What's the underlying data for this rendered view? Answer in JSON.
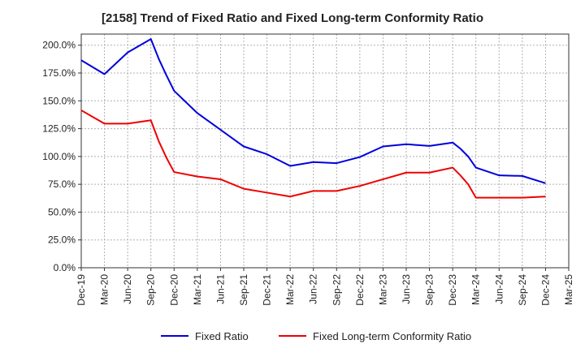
{
  "chart_data": {
    "type": "line",
    "title": "[2158]  Trend of Fixed Ratio and Fixed Long-term Conformity Ratio",
    "xlabel": "",
    "ylabel": "",
    "x_ticks": [
      "Dec-19",
      "Mar-20",
      "Jun-20",
      "Sep-20",
      "Dec-20",
      "Mar-21",
      "Jun-21",
      "Sep-21",
      "Dec-21",
      "Mar-22",
      "Jun-22",
      "Sep-22",
      "Dec-22",
      "Mar-23",
      "Jun-23",
      "Sep-23",
      "Dec-23",
      "Mar-24",
      "Jun-24",
      "Sep-24",
      "Dec-24",
      "Mar-25"
    ],
    "y_ticks": [
      "0.0%",
      "25.0%",
      "50.0%",
      "75.0%",
      "100.0%",
      "125.0%",
      "150.0%",
      "175.0%",
      "200.0%"
    ],
    "ylim": [
      0,
      210
    ],
    "grid": true,
    "legend_position": "bottom-center",
    "series": [
      {
        "name": "Fixed Ratio",
        "color": "#0000dd",
        "points": [
          [
            "Dec-19",
            186.5
          ],
          [
            "Mar-20",
            174
          ],
          [
            "Jun-20",
            193.5
          ],
          [
            "Sep-20",
            205.5
          ],
          [
            "Oct-20",
            188
          ],
          [
            "Nov-20",
            173
          ],
          [
            "Dec-20",
            159
          ],
          [
            "Mar-21",
            139
          ],
          [
            "Jun-21",
            124
          ],
          [
            "Sep-21",
            109
          ],
          [
            "Dec-21",
            102
          ],
          [
            "Mar-22",
            91.5
          ],
          [
            "Jun-22",
            95
          ],
          [
            "Sep-22",
            94
          ],
          [
            "Dec-22",
            99.5
          ],
          [
            "Mar-23",
            109
          ],
          [
            "Jun-23",
            111
          ],
          [
            "Sep-23",
            109.5
          ],
          [
            "Dec-23",
            112.5
          ],
          [
            "Jan-24",
            107
          ],
          [
            "Feb-24",
            100
          ],
          [
            "Mar-24",
            90
          ],
          [
            "Jun-24",
            83
          ],
          [
            "Sep-24",
            82.5
          ],
          [
            "Dec-24",
            76
          ]
        ]
      },
      {
        "name": "Fixed Long-term Conformity Ratio",
        "color": "#ee0000",
        "points": [
          [
            "Dec-19",
            141.5
          ],
          [
            "Mar-20",
            129.5
          ],
          [
            "Jun-20",
            129.5
          ],
          [
            "Sep-20",
            132.5
          ],
          [
            "Oct-20",
            114
          ],
          [
            "Nov-20",
            99
          ],
          [
            "Dec-20",
            86
          ],
          [
            "Mar-21",
            82
          ],
          [
            "Jun-21",
            79.5
          ],
          [
            "Sep-21",
            71
          ],
          [
            "Dec-21",
            67.5
          ],
          [
            "Mar-22",
            64
          ],
          [
            "Jun-22",
            69
          ],
          [
            "Sep-22",
            69
          ],
          [
            "Dec-22",
            73.5
          ],
          [
            "Mar-23",
            79.5
          ],
          [
            "Jun-23",
            85.5
          ],
          [
            "Sep-23",
            85.5
          ],
          [
            "Dec-23",
            90
          ],
          [
            "Jan-24",
            83
          ],
          [
            "Feb-24",
            75
          ],
          [
            "Mar-24",
            63
          ],
          [
            "Jun-24",
            63
          ],
          [
            "Sep-24",
            63
          ],
          [
            "Dec-24",
            64
          ]
        ]
      }
    ]
  }
}
